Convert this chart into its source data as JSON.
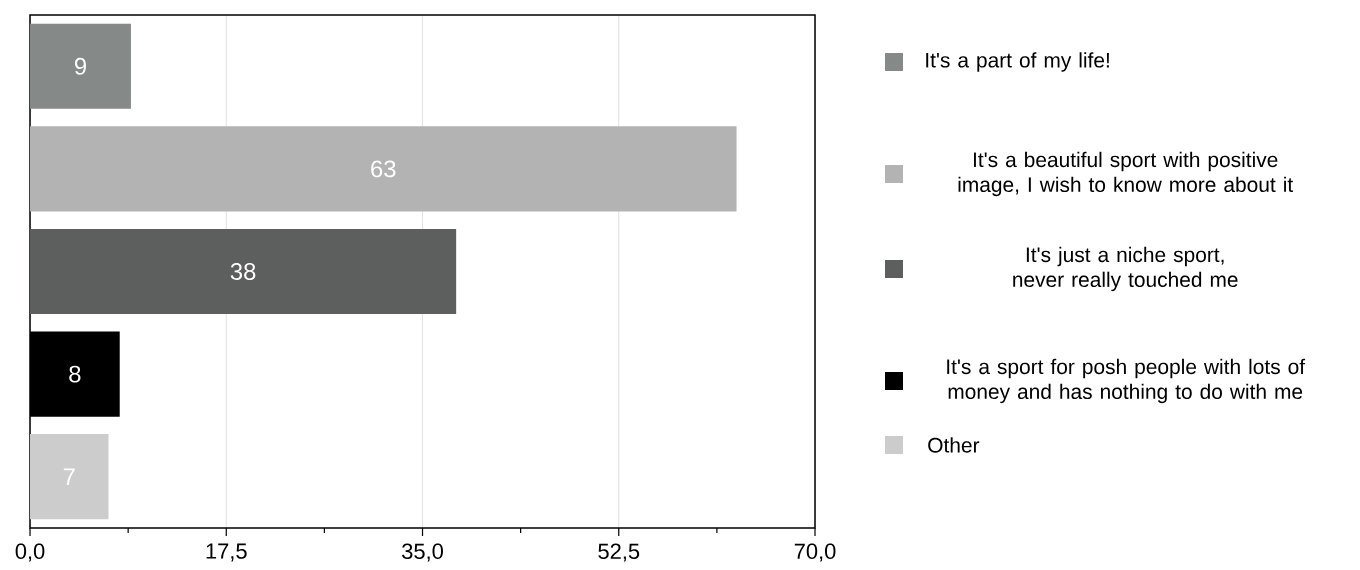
{
  "chart_data": {
    "type": "bar",
    "orientation": "horizontal",
    "categories": [
      null,
      null,
      null,
      null,
      null
    ],
    "series": [
      {
        "name": "It's a part of my life!",
        "color": "#858987",
        "values": [
          9,
          null,
          null,
          null,
          null
        ]
      },
      {
        "name": "It's a beautiful sport with positive image, I wish to know more about it",
        "color": "#b3b3b3",
        "values": [
          null,
          63,
          null,
          null,
          null
        ]
      },
      {
        "name": "It's just a niche sport, never really touched me",
        "color": "#5c5f5e",
        "values": [
          null,
          null,
          38,
          null,
          null
        ]
      },
      {
        "name": "It's a sport for posh people with lots of money and has nothing to do with me",
        "color": "#000000",
        "values": [
          null,
          null,
          null,
          8,
          null
        ]
      },
      {
        "name": "Other",
        "color": "#cccccc",
        "values": [
          null,
          null,
          null,
          null,
          7
        ]
      }
    ],
    "xlim": [
      0,
      70
    ],
    "xticks": [
      {
        "value": 0,
        "label": "0,0"
      },
      {
        "value": 8.75,
        "label": null
      },
      {
        "value": 17.5,
        "label": "17,5"
      },
      {
        "value": 26.25,
        "label": null
      },
      {
        "value": 35,
        "label": "35,0"
      },
      {
        "value": 43.75,
        "label": null
      },
      {
        "value": 52.5,
        "label": "52,5"
      },
      {
        "value": 61.25,
        "label": null
      },
      {
        "value": 70,
        "label": "70,0"
      }
    ],
    "grid": "x",
    "legend": "right",
    "data_labels": true
  }
}
